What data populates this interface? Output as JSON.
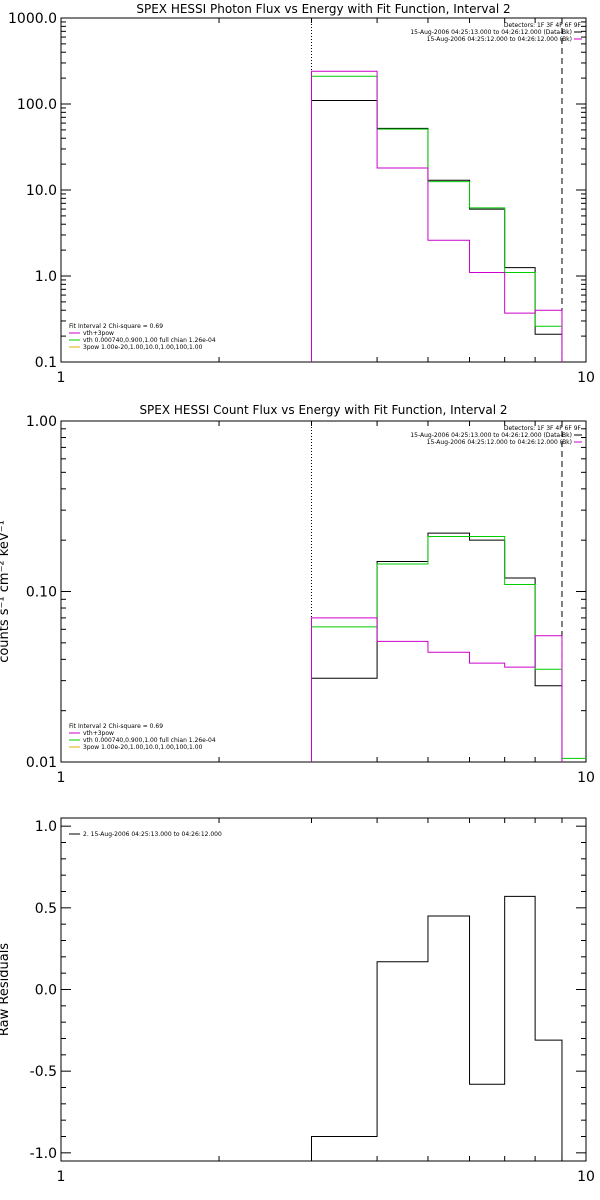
{
  "chart_data": [
    {
      "type": "line",
      "title": "SPEX HESSI Photon Flux vs Energy with Fit Function, Interval 2",
      "ylabel": "",
      "xlim": [
        1,
        10
      ],
      "ylim": [
        0.1,
        1000
      ],
      "xscale": "log",
      "yscale": "log",
      "x_tick_labels": [
        {
          "value": 1,
          "label": "1"
        },
        {
          "value": 10,
          "label": "10"
        }
      ],
      "y_tick_labels": [
        {
          "value": 0.1,
          "label": "0.1"
        },
        {
          "value": 1,
          "label": "1.0"
        },
        {
          "value": 10,
          "label": "10.0"
        },
        {
          "value": 100,
          "label": "100.0"
        },
        {
          "value": 1000,
          "label": "1000.0"
        }
      ],
      "bin_edges": [
        3,
        4,
        5,
        6,
        7,
        8,
        9
      ],
      "vlines": [
        {
          "x": 3,
          "style": "dotted"
        },
        {
          "x": 9,
          "style": "dashed"
        }
      ],
      "header_lines": [
        {
          "text": "Detectors: 1F 3F 4F 6F 9F",
          "color": ""
        },
        {
          "text": "15-Aug-2006 04:25:13.000 to 04:26:12.000 (Data-Bk)",
          "color": "#000000"
        },
        {
          "text": "15-Aug-2006 04:25:12.000 to 04:26:12.000 (Bk)",
          "color": "#cc00cc"
        }
      ],
      "legend_lines": [
        {
          "text": "Fit Interval 2   Chi-square = 0.69",
          "color": ""
        },
        {
          "text": "vth+3pow",
          "color": "#cc00cc"
        },
        {
          "text": "vth 0.000740,0.900,1.00   full chian 1.26e-04",
          "color": "#00cc00"
        },
        {
          "text": "3pow 1.00e-20,1.00,10.0,1.00,100,1.00",
          "color": "#e0b000"
        }
      ],
      "series": [
        {
          "color": "#000000",
          "values": [
            110,
            52,
            13,
            6,
            1.25,
            0.21
          ]
        },
        {
          "color": "#00cc00",
          "values": [
            210,
            51,
            12.5,
            6.2,
            1.1,
            0.26
          ]
        },
        {
          "color": "#cc00cc",
          "values": [
            240,
            18,
            2.6,
            1.1,
            0.37,
            0.4
          ]
        }
      ]
    },
    {
      "type": "line",
      "title": "SPEX HESSI Count Flux vs Energy with Fit Function, Interval 2",
      "ylabel": "counts s⁻¹ cm⁻² keV⁻¹",
      "xlim": [
        1,
        10
      ],
      "ylim": [
        0.01,
        1
      ],
      "xscale": "log",
      "yscale": "log",
      "x_tick_labels": [
        {
          "value": 1,
          "label": "1"
        },
        {
          "value": 10,
          "label": "10"
        }
      ],
      "y_tick_labels": [
        {
          "value": 0.01,
          "label": "0.01"
        },
        {
          "value": 0.1,
          "label": "0.10"
        },
        {
          "value": 1,
          "label": "1.00"
        }
      ],
      "bin_edges": [
        3,
        4,
        5,
        6,
        7,
        8,
        9
      ],
      "vlines": [
        {
          "x": 3,
          "style": "dotted"
        },
        {
          "x": 9,
          "style": "dashed"
        }
      ],
      "header_lines": [
        {
          "text": "Detectors: 1F 3F 4F 6F 9F",
          "color": ""
        },
        {
          "text": "15-Aug-2006 04:25:13.000 to 04:26:12.000 (Data-Bk)",
          "color": "#000000"
        },
        {
          "text": "15-Aug-2006 04:25:12.000 to 04:26:12.000 (Bk)",
          "color": "#cc00cc"
        }
      ],
      "legend_lines": [
        {
          "text": "Fit Interval 2   Chi-square = 0.69",
          "color": ""
        },
        {
          "text": "vth+3pow",
          "color": "#cc00cc"
        },
        {
          "text": "vth 0.000740,0.900,1.00   full chian 1.26e-04",
          "color": "#00cc00"
        },
        {
          "text": "3pow 1.00e-20,1.00,10.0,1.00,100,1.00",
          "color": "#e0b000"
        }
      ],
      "series": [
        {
          "color": "#000000",
          "values": [
            0.031,
            0.15,
            0.22,
            0.2,
            0.12,
            0.028
          ]
        },
        {
          "color": "#00cc00",
          "values": [
            0.062,
            0.145,
            0.21,
            0.21,
            0.11,
            0.035
          ]
        },
        {
          "color": "#cc00cc",
          "values": [
            0.07,
            0.051,
            0.044,
            0.038,
            0.036,
            0.055
          ]
        }
      ],
      "extra_segment": {
        "color": "#00cc00",
        "x": [
          9,
          10
        ],
        "value": 0.0105
      }
    },
    {
      "type": "line",
      "title": "",
      "ylabel": "Raw Residuals",
      "xlim": [
        1,
        10
      ],
      "ylim": [
        -1.05,
        1.05
      ],
      "xscale": "log",
      "yscale": "linear",
      "x_tick_labels": [
        {
          "value": 1,
          "label": "1"
        },
        {
          "value": 10,
          "label": "10"
        }
      ],
      "y_tick_labels": [
        {
          "value": -1,
          "label": "-1.0"
        },
        {
          "value": -0.5,
          "label": "-0.5"
        },
        {
          "value": 0,
          "label": "0.0"
        },
        {
          "value": 0.5,
          "label": "0.5"
        },
        {
          "value": 1,
          "label": "1.0"
        }
      ],
      "bin_edges": [
        3,
        4,
        5,
        6,
        7,
        8,
        9
      ],
      "vlines": [],
      "header_lines": [],
      "legend_lines": [
        {
          "text": "2. 15-Aug-2006 04:25:13.000 to 04:26:12.000",
          "color": "#000000"
        }
      ],
      "series": [
        {
          "color": "#000000",
          "values": [
            -0.9,
            0.17,
            0.45,
            -0.58,
            0.57,
            -0.31
          ]
        }
      ]
    }
  ]
}
